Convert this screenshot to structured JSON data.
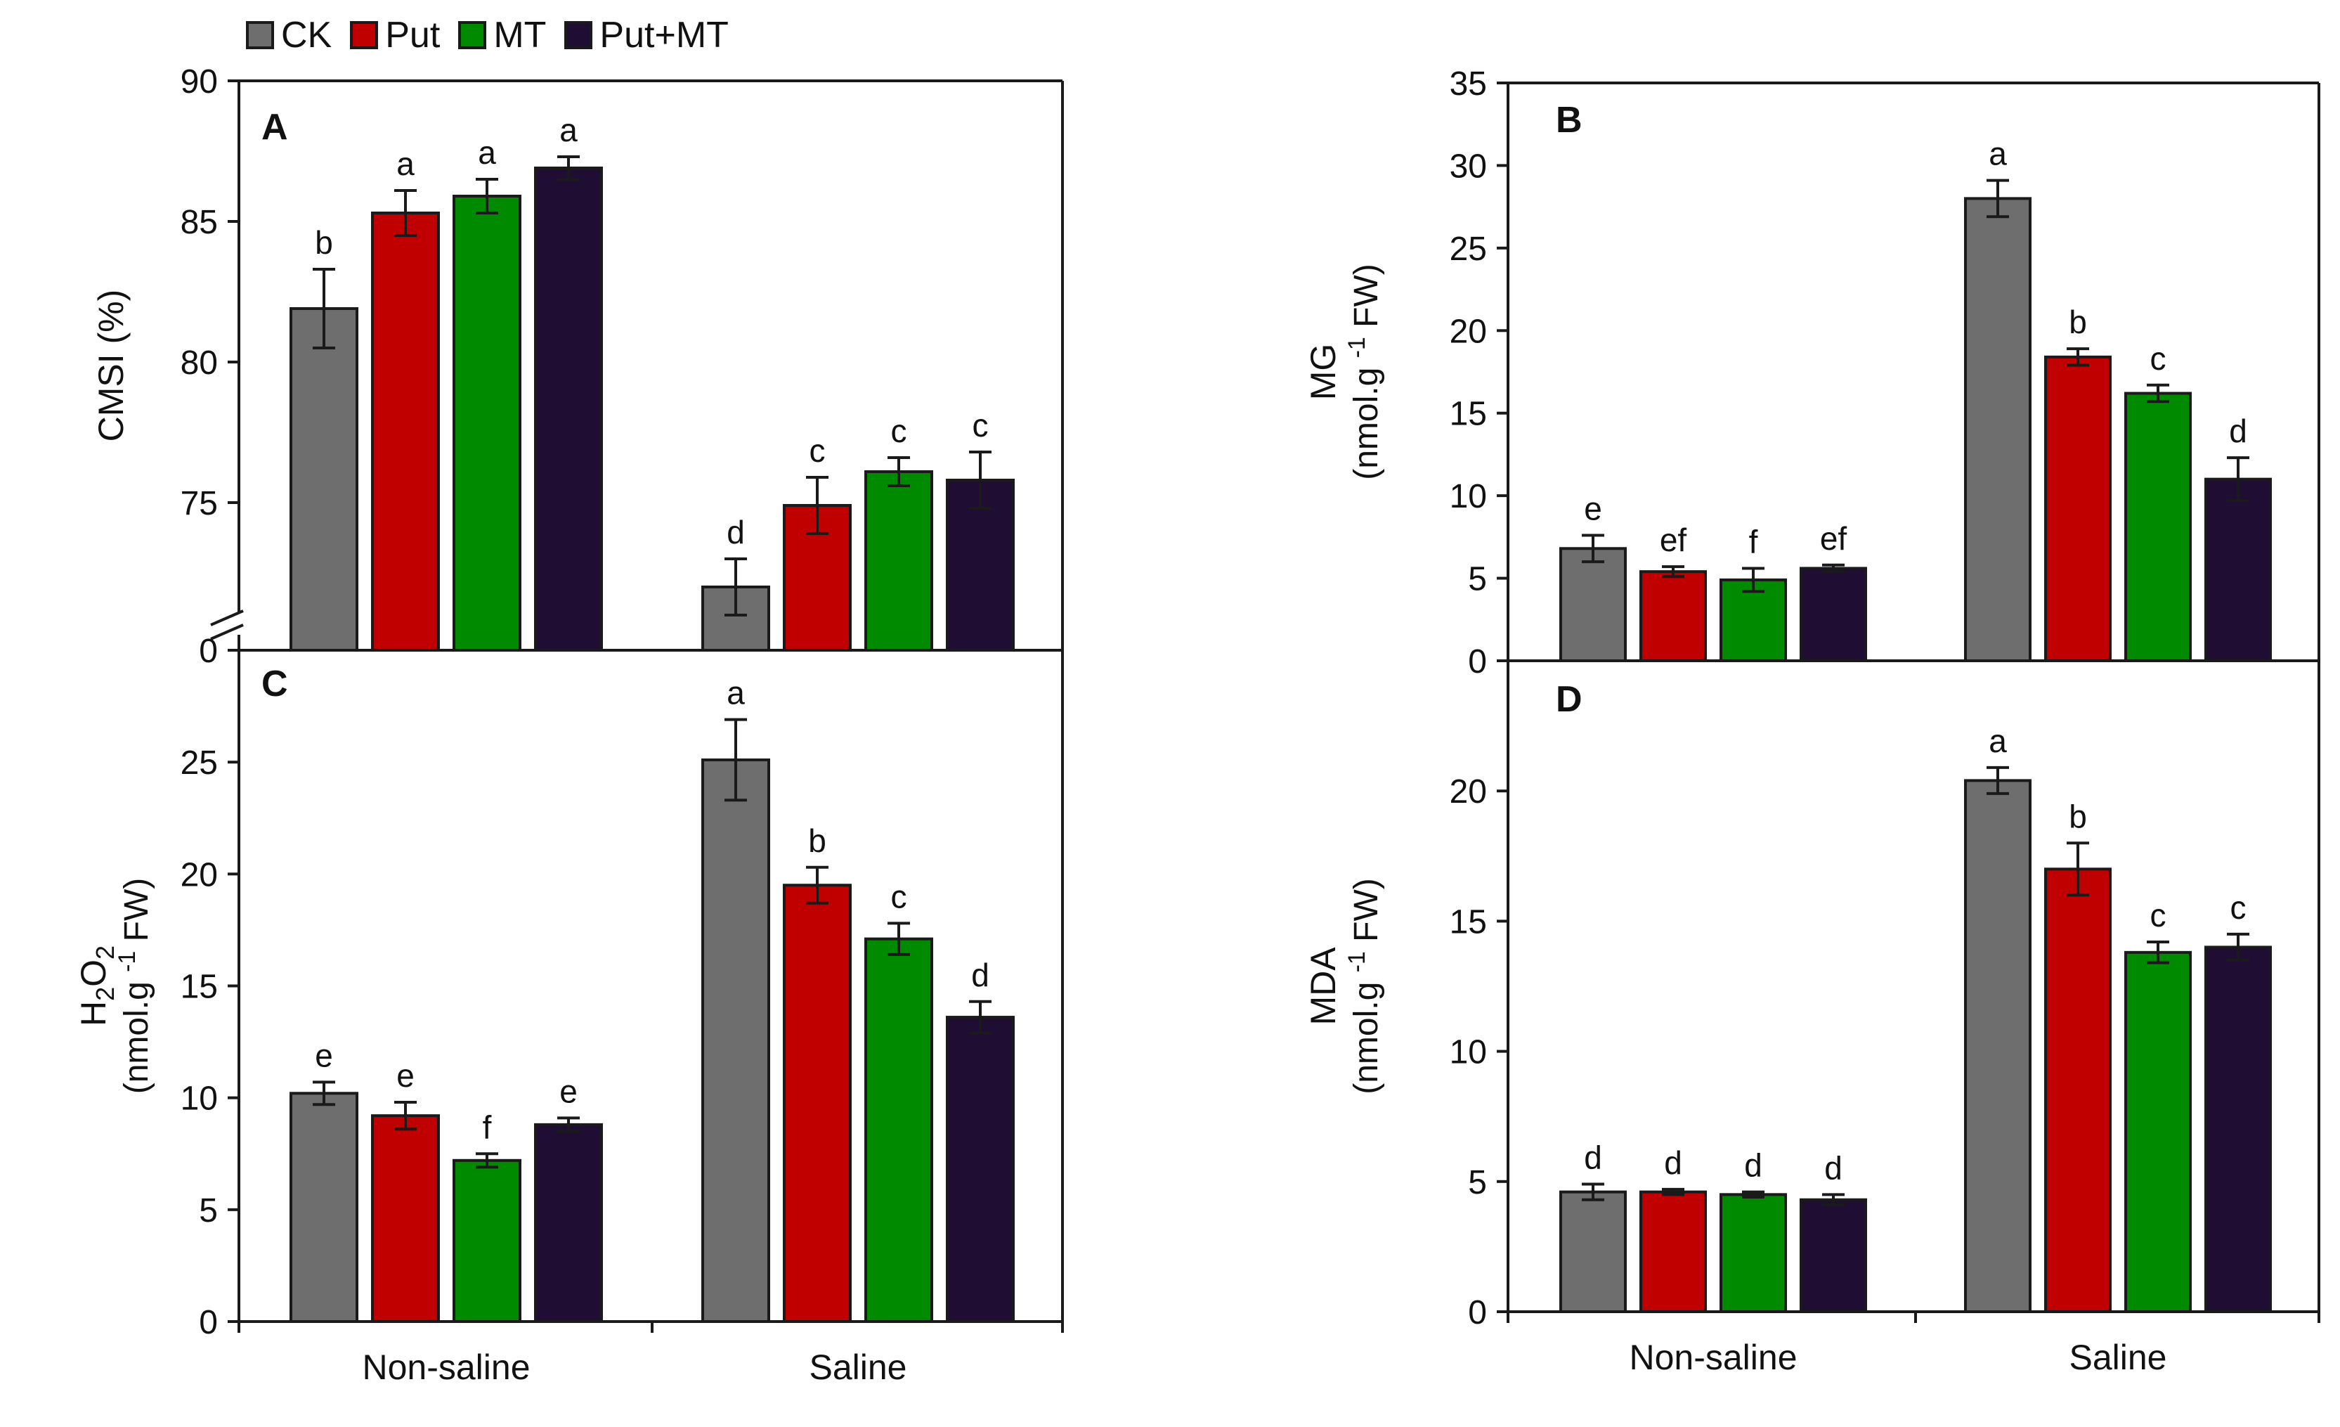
{
  "legend": [
    {
      "label": "CK",
      "color": "#6e6e6e"
    },
    {
      "label": "Put",
      "color": "#c00000"
    },
    {
      "label": "MT",
      "color": "#008a00"
    },
    {
      "label": "Put+MT",
      "color": "#200d33"
    }
  ],
  "chart_data": [
    {
      "type": "bar",
      "panel_label": "A",
      "ylabel": "CMSI (%)",
      "categories": [
        "Non-saline",
        "Saline"
      ],
      "axis_break": true,
      "ylim": [
        0,
        90
      ],
      "yticks": [
        0,
        75,
        80,
        85,
        90
      ],
      "series": [
        {
          "name": "CK",
          "values": [
            81.9,
            72.0
          ],
          "errors": [
            1.4,
            1.0
          ],
          "letters": [
            "b",
            "d"
          ]
        },
        {
          "name": "Put",
          "values": [
            85.3,
            74.9
          ],
          "errors": [
            0.8,
            1.0
          ],
          "letters": [
            "a",
            "c"
          ]
        },
        {
          "name": "MT",
          "values": [
            85.9,
            76.1
          ],
          "errors": [
            0.6,
            0.5
          ],
          "letters": [
            "a",
            "c"
          ]
        },
        {
          "name": "Put+MT",
          "values": [
            86.9,
            75.8
          ],
          "errors": [
            0.4,
            1.0
          ],
          "letters": [
            "a",
            "c"
          ]
        }
      ]
    },
    {
      "type": "bar",
      "panel_label": "B",
      "ylabel": "MG",
      "ylabel_unit": "(nmol.g -1 FW)",
      "categories": [
        "Non-saline",
        "Saline"
      ],
      "ylim": [
        0,
        35
      ],
      "yticks": [
        0,
        5,
        10,
        15,
        20,
        25,
        30,
        35
      ],
      "series": [
        {
          "name": "CK",
          "values": [
            6.8,
            28.0
          ],
          "errors": [
            0.8,
            1.1
          ],
          "letters": [
            "e",
            "a"
          ]
        },
        {
          "name": "Put",
          "values": [
            5.4,
            18.4
          ],
          "errors": [
            0.3,
            0.5
          ],
          "letters": [
            "ef",
            "b"
          ]
        },
        {
          "name": "MT",
          "values": [
            4.9,
            16.2
          ],
          "errors": [
            0.7,
            0.5
          ],
          "letters": [
            "f",
            "c"
          ]
        },
        {
          "name": "Put+MT",
          "values": [
            5.6,
            11.0
          ],
          "errors": [
            0.2,
            1.3
          ],
          "letters": [
            "ef",
            "d"
          ]
        }
      ]
    },
    {
      "type": "bar",
      "panel_label": "C",
      "ylabel": "H2O2",
      "ylabel_unit": "(nmol.g -1 FW)",
      "categories": [
        "Non-saline",
        "Saline"
      ],
      "ylim": [
        0,
        30
      ],
      "yticks": [
        0,
        5,
        10,
        15,
        20,
        25
      ],
      "series": [
        {
          "name": "CK",
          "values": [
            10.2,
            25.1
          ],
          "errors": [
            0.5,
            1.8
          ],
          "letters": [
            "e",
            "a"
          ]
        },
        {
          "name": "Put",
          "values": [
            9.2,
            19.5
          ],
          "errors": [
            0.6,
            0.8
          ],
          "letters": [
            "e",
            "b"
          ]
        },
        {
          "name": "MT",
          "values": [
            7.2,
            17.1
          ],
          "errors": [
            0.3,
            0.7
          ],
          "letters": [
            "f",
            "c"
          ]
        },
        {
          "name": "Put+MT",
          "values": [
            8.8,
            13.6
          ],
          "errors": [
            0.3,
            0.7
          ],
          "letters": [
            "e",
            "d"
          ]
        }
      ]
    },
    {
      "type": "bar",
      "panel_label": "D",
      "ylabel": "MDA",
      "ylabel_unit": "(nmol.g -1 FW)",
      "categories": [
        "Non-saline",
        "Saline"
      ],
      "ylim": [
        0,
        25
      ],
      "yticks": [
        0,
        5,
        10,
        15,
        20
      ],
      "series": [
        {
          "name": "CK",
          "values": [
            4.6,
            20.4
          ],
          "errors": [
            0.3,
            0.5
          ],
          "letters": [
            "d",
            "a"
          ]
        },
        {
          "name": "Put",
          "values": [
            4.6,
            17.0
          ],
          "errors": [
            0.1,
            1.0
          ],
          "letters": [
            "d",
            "b"
          ]
        },
        {
          "name": "MT",
          "values": [
            4.5,
            13.8
          ],
          "errors": [
            0.1,
            0.4
          ],
          "letters": [
            "d",
            "c"
          ]
        },
        {
          "name": "Put+MT",
          "values": [
            4.3,
            14.0
          ],
          "errors": [
            0.2,
            0.5
          ],
          "letters": [
            "d",
            "c"
          ]
        }
      ]
    }
  ]
}
